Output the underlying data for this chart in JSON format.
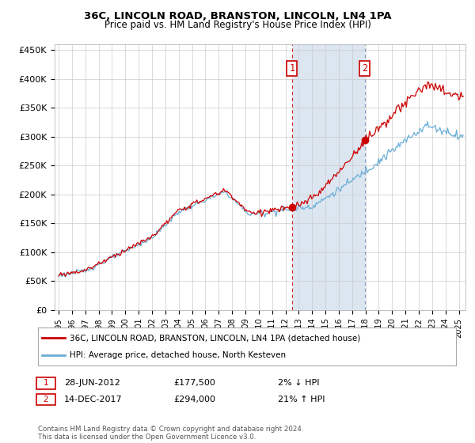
{
  "title": "36C, LINCOLN ROAD, BRANSTON, LINCOLN, LN4 1PA",
  "subtitle": "Price paid vs. HM Land Registry's House Price Index (HPI)",
  "ylabel_ticks": [
    "£0",
    "£50K",
    "£100K",
    "£150K",
    "£200K",
    "£250K",
    "£300K",
    "£350K",
    "£400K",
    "£450K"
  ],
  "ytick_values": [
    0,
    50000,
    100000,
    150000,
    200000,
    250000,
    300000,
    350000,
    400000,
    450000
  ],
  "ylim": [
    0,
    460000
  ],
  "xlim_start": 1994.7,
  "xlim_end": 2025.5,
  "sale1_x": 2012.5,
  "sale1_y": 177500,
  "sale1_label": "1",
  "sale2_x": 2017.95,
  "sale2_y": 294000,
  "sale2_label": "2",
  "red_color": "#cc0000",
  "blue_color": "#6aaed6",
  "shade_color": "#dce6f1",
  "legend_line1": "36C, LINCOLN ROAD, BRANSTON, LINCOLN, LN4 1PA (detached house)",
  "legend_line2": "HPI: Average price, detached house, North Kesteven",
  "annotation1_date": "28-JUN-2012",
  "annotation1_price": "£177,500",
  "annotation1_hpi": "2% ↓ HPI",
  "annotation2_date": "14-DEC-2017",
  "annotation2_price": "£294,000",
  "annotation2_hpi": "21% ↑ HPI",
  "footnote": "Contains HM Land Registry data © Crown copyright and database right 2024.\nThis data is licensed under the Open Government Licence v3.0."
}
